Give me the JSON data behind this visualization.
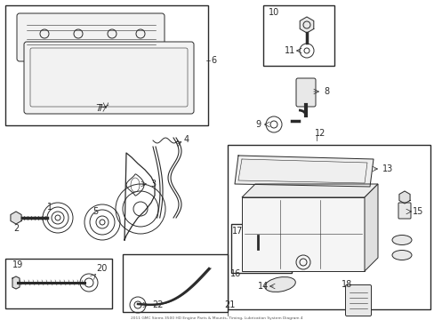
{
  "bg_color": "#ffffff",
  "lc": "#2a2a2a",
  "fig_width": 4.89,
  "fig_height": 3.6,
  "dpi": 100,
  "title": "2011 GMC Sierra 3500 HD Engine Parts & Mounts, Timing, Lubrication System Diagram 4"
}
